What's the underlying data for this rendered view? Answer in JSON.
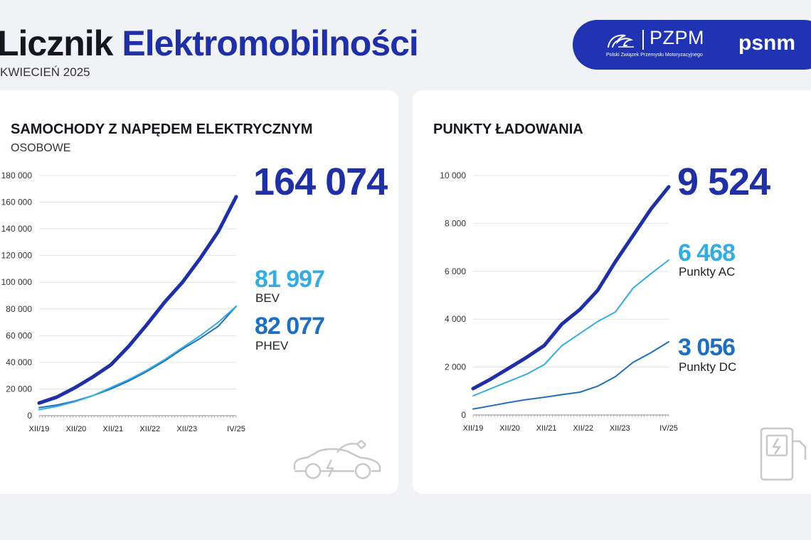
{
  "header": {
    "title_part1": "Licznik",
    "title_part2": "Elektromobilności",
    "date": "KWIECIEŃ 2025"
  },
  "logos": {
    "pzpm": "PZPM",
    "pzpm_sub": "Polski Związek Przemysłu Motoryzacyjnego",
    "psnm": "psnm"
  },
  "colors": {
    "dark_blue": "#1f2fa6",
    "mid_blue": "#1e6fc1",
    "light_blue": "#35ace0",
    "grid": "#e3e3e3"
  },
  "chart_data": [
    {
      "type": "line",
      "title": "SAMOCHODY Z NAPĘDEM ELEKTRYCZNYM",
      "subtitle": "OSOBOWE",
      "yticks": [
        "0",
        "20 000",
        "40 000",
        "60 000",
        "80 000",
        "100 000",
        "120 000",
        "140 000",
        "160 000",
        "180 000"
      ],
      "xticks": [
        "XII/19",
        "XII/20",
        "XII/21",
        "XII/22",
        "XII/23",
        "IV/25"
      ],
      "ylim": [
        0,
        180000
      ],
      "x": [
        "XII/19",
        "VI/20",
        "XII/20",
        "VI/21",
        "XII/21",
        "VI/22",
        "XII/22",
        "VI/23",
        "XII/23",
        "VI/24",
        "XII/24",
        "IV/25"
      ],
      "series": [
        {
          "name": "",
          "color": "#1f2fa6",
          "values": [
            9500,
            14000,
            21000,
            29000,
            38000,
            52000,
            68000,
            85000,
            100000,
            118000,
            138000,
            164074
          ]
        },
        {
          "name": "BEV",
          "color": "#35ace0",
          "values": [
            4500,
            7000,
            10500,
            15000,
            21000,
            27000,
            34000,
            42000,
            51000,
            60000,
            70000,
            81997
          ]
        },
        {
          "name": "PHEV",
          "color": "#1e6fc1",
          "values": [
            6000,
            8000,
            11000,
            15000,
            20000,
            26000,
            33000,
            41000,
            50000,
            58000,
            67000,
            82077
          ]
        }
      ],
      "totals": [
        {
          "value": "164 074",
          "label": ""
        },
        {
          "value": "81 997",
          "label": "BEV"
        },
        {
          "value": "82 077",
          "label": "PHEV"
        }
      ]
    },
    {
      "type": "line",
      "title": "PUNKTY ŁADOWANIA",
      "yticks": [
        "0",
        "2 000",
        "4 000",
        "6 000",
        "8 000",
        "10 000"
      ],
      "xticks": [
        "XII/19",
        "XII/20",
        "XII/21",
        "XII/22",
        "XII/23",
        "IV/25"
      ],
      "ylim": [
        0,
        10000
      ],
      "x": [
        "XII/19",
        "VI/20",
        "XII/20",
        "VI/21",
        "XII/21",
        "VI/22",
        "XII/22",
        "VI/23",
        "XII/23",
        "VI/24",
        "XII/24",
        "IV/25"
      ],
      "series": [
        {
          "name": "",
          "color": "#1f2fa6",
          "values": [
            1100,
            1500,
            1950,
            2400,
            2900,
            3800,
            4400,
            5200,
            6400,
            7500,
            8600,
            9524
          ]
        },
        {
          "name": "Punkty AC",
          "color": "#35ace0",
          "values": [
            800,
            1100,
            1400,
            1700,
            2100,
            2900,
            3400,
            3900,
            4300,
            5300,
            5900,
            6468
          ]
        },
        {
          "name": "Punkty DC",
          "color": "#1e6fc1",
          "values": [
            250,
            380,
            520,
            640,
            740,
            850,
            950,
            1200,
            1600,
            2200,
            2600,
            3056
          ]
        }
      ],
      "totals": [
        {
          "value": "9 524",
          "label": ""
        },
        {
          "value": "6 468",
          "label": "Punkty AC"
        },
        {
          "value": "3 056",
          "label": "Punkty DC"
        }
      ]
    }
  ]
}
